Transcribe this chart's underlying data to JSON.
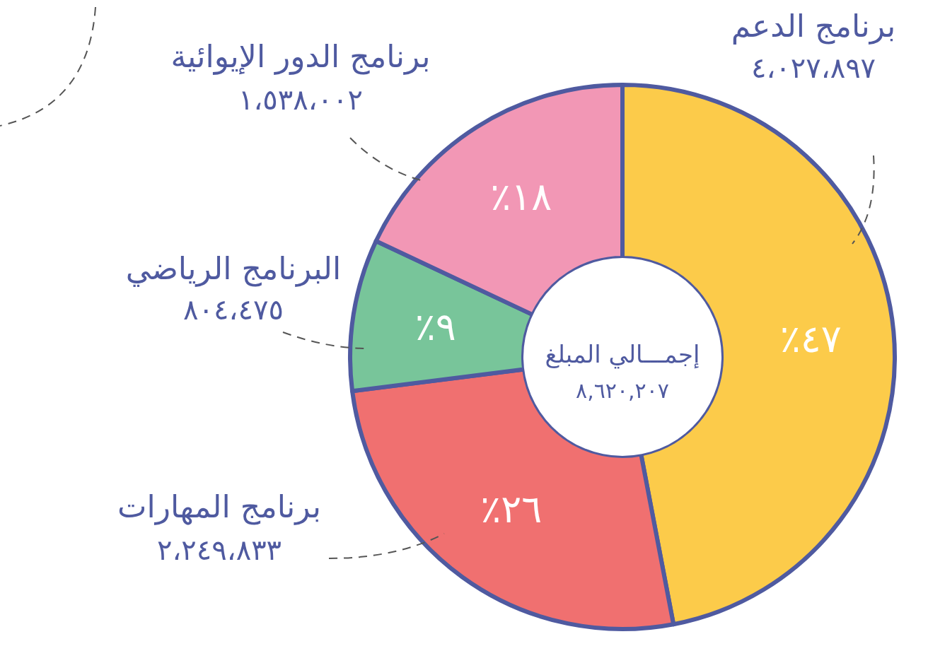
{
  "chart_data": {
    "type": "donut",
    "title": "إجمـــالي المبلغ",
    "subtitle": "٨,٦٢٠,٢٠٧",
    "categories": [
      "برنامج الدعم",
      "برنامج المهارات",
      "البرنامج الرياضي",
      "برنامج الدور الإيوائية"
    ],
    "values": [
      47,
      26,
      9,
      18
    ],
    "colors": [
      "#fccb4a",
      "#f07070",
      "#78c59a",
      "#f297b5"
    ],
    "annotations": [
      "٤٧٪",
      "٢٦٪",
      "٩٪",
      "١٨٪",
      "٤،٠٢٧،٨٩٧",
      "٢،٢٤٩،٨٣٣",
      "٨٠٤،٤٧٥",
      "١،٥٣٨،٠٠٢"
    ]
  }
}
